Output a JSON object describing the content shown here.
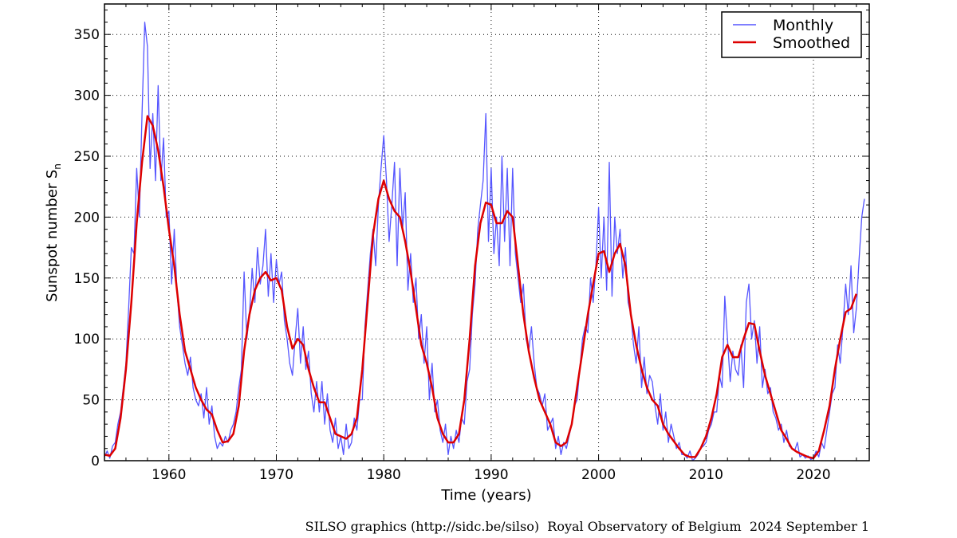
{
  "chart_data": {
    "type": "line",
    "title": "",
    "xlabel": "Time (years)",
    "ylabel": "Sunspot number S",
    "ylabel_subscript": "n",
    "xlim": [
      1954,
      2025.2
    ],
    "ylim": [
      0,
      375
    ],
    "xticks": [
      1960,
      1970,
      1980,
      1990,
      2000,
      2010,
      2020
    ],
    "yticks": [
      0,
      50,
      100,
      150,
      200,
      250,
      300,
      350
    ],
    "grid": true,
    "legend": "top-right",
    "series": [
      {
        "name": "Monthly",
        "color": "#5555ff",
        "x_start": 1954.0,
        "x_step": 0.25,
        "values": [
          3,
          8,
          2,
          12,
          15,
          30,
          40,
          60,
          80,
          125,
          175,
          170,
          240,
          200,
          285,
          360,
          340,
          240,
          285,
          230,
          308,
          230,
          265,
          200,
          205,
          145,
          190,
          140,
          110,
          95,
          80,
          70,
          85,
          60,
          50,
          45,
          55,
          35,
          60,
          30,
          45,
          20,
          10,
          15,
          12,
          20,
          15,
          25,
          30,
          40,
          60,
          75,
          155,
          100,
          120,
          158,
          130,
          175,
          145,
          160,
          190,
          135,
          170,
          130,
          165,
          145,
          155,
          115,
          100,
          80,
          70,
          100,
          125,
          80,
          110,
          75,
          90,
          55,
          40,
          65,
          40,
          65,
          30,
          55,
          25,
          15,
          35,
          10,
          20,
          5,
          30,
          10,
          15,
          35,
          25,
          50,
          50,
          110,
          140,
          170,
          190,
          160,
          210,
          240,
          267,
          230,
          180,
          210,
          245,
          160,
          240,
          190,
          220,
          140,
          170,
          130,
          150,
          100,
          120,
          80,
          110,
          50,
          80,
          40,
          50,
          25,
          15,
          30,
          5,
          20,
          10,
          25,
          15,
          35,
          30,
          65,
          75,
          120,
          145,
          190,
          210,
          230,
          285,
          180,
          240,
          170,
          200,
          160,
          250,
          180,
          240,
          160,
          240,
          170,
          150,
          130,
          145,
          100,
          90,
          110,
          80,
          60,
          55,
          45,
          55,
          25,
          30,
          35,
          10,
          20,
          5,
          15,
          10,
          20,
          30,
          45,
          50,
          75,
          100,
          110,
          105,
          150,
          130,
          160,
          208,
          150,
          200,
          140,
          245,
          135,
          200,
          170,
          190,
          150,
          175,
          130,
          120,
          95,
          80,
          110,
          60,
          85,
          55,
          70,
          65,
          45,
          30,
          55,
          25,
          40,
          15,
          30,
          20,
          10,
          15,
          5,
          5,
          2,
          8,
          0,
          2,
          5,
          10,
          12,
          15,
          25,
          30,
          40,
          40,
          70,
          60,
          135,
          100,
          65,
          90,
          75,
          70,
          95,
          60,
          130,
          145,
          100,
          115,
          80,
          110,
          60,
          75,
          55,
          60,
          40,
          35,
          25,
          30,
          15,
          25,
          12,
          10,
          8,
          15,
          3,
          5,
          2,
          4,
          1,
          2,
          8,
          3,
          15,
          10,
          25,
          40,
          55,
          60,
          95,
          80,
          110,
          145,
          120,
          160,
          105,
          125,
          165,
          200,
          215
        ]
      },
      {
        "name": "Smoothed",
        "color": "#dd0000",
        "x_start": 1954.0,
        "x_step": 0.5,
        "values": [
          5,
          4,
          10,
          35,
          75,
          130,
          195,
          245,
          283,
          275,
          255,
          225,
          190,
          160,
          120,
          90,
          75,
          60,
          50,
          42,
          38,
          25,
          15,
          16,
          22,
          45,
          90,
          120,
          140,
          150,
          155,
          148,
          150,
          140,
          110,
          92,
          100,
          95,
          75,
          60,
          48,
          48,
          35,
          22,
          20,
          18,
          22,
          35,
          75,
          130,
          185,
          215,
          230,
          215,
          205,
          200,
          180,
          155,
          125,
          95,
          80,
          60,
          35,
          22,
          15,
          15,
          22,
          50,
          100,
          160,
          195,
          212,
          210,
          195,
          195,
          205,
          200,
          160,
          120,
          90,
          68,
          50,
          40,
          30,
          15,
          12,
          15,
          30,
          60,
          90,
          120,
          145,
          170,
          172,
          155,
          170,
          178,
          160,
          120,
          95,
          75,
          60,
          50,
          45,
          30,
          22,
          16,
          10,
          5,
          3,
          3,
          10,
          20,
          35,
          55,
          85,
          95,
          85,
          85,
          100,
          113,
          112,
          90,
          70,
          55,
          40,
          25,
          18,
          10,
          7,
          5,
          3,
          2,
          8,
          25,
          45,
          75,
          100,
          122,
          125,
          137
        ]
      }
    ]
  },
  "footer": "SILSO graphics (http://sidc.be/silso)  Royal Observatory of Belgium  2024 September 1"
}
